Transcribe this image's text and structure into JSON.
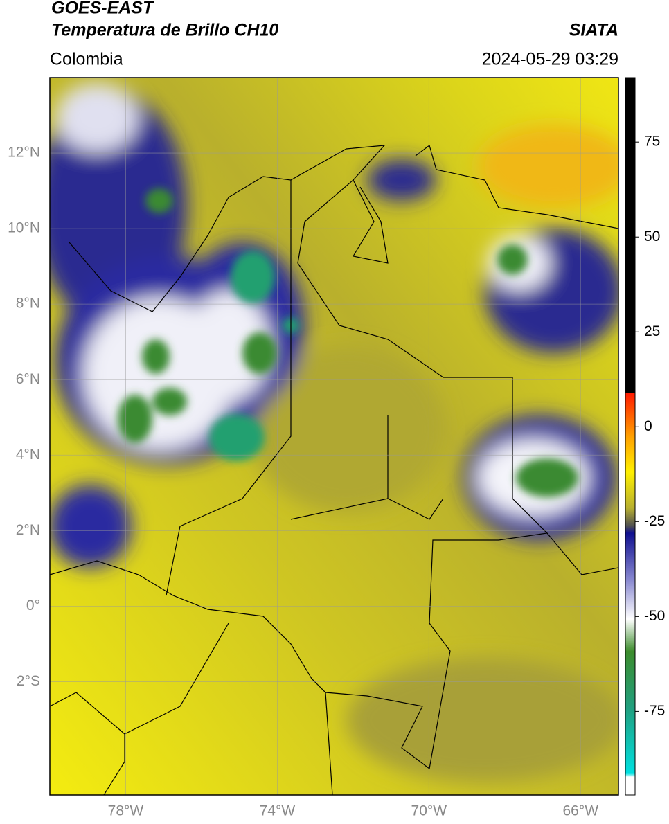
{
  "header": {
    "satellite": "GOES-EAST",
    "product": "Temperatura de Brillo CH10",
    "source": "SIATA",
    "region": "Colombia",
    "datetime": "2024-05-29 03:29"
  },
  "map": {
    "lon_range": [
      -80,
      -65
    ],
    "lat_range": [
      -5,
      14
    ],
    "lon_ticks": [
      {
        "value": -78,
        "label": "78°W"
      },
      {
        "value": -74,
        "label": "74°W"
      },
      {
        "value": -70,
        "label": "70°W"
      },
      {
        "value": -66,
        "label": "66°W"
      }
    ],
    "lat_ticks": [
      {
        "value": 12,
        "label": "12°N"
      },
      {
        "value": 10,
        "label": "10°N"
      },
      {
        "value": 8,
        "label": "8°N"
      },
      {
        "value": 6,
        "label": "6°N"
      },
      {
        "value": 4,
        "label": "4°N"
      },
      {
        "value": 2,
        "label": "2°N"
      },
      {
        "value": 0,
        "label": "0°"
      },
      {
        "value": -2,
        "label": "2°S"
      }
    ]
  },
  "colorbar": {
    "range": [
      -97,
      92
    ],
    "ticks": [
      75,
      50,
      25,
      0,
      -25,
      -50,
      -75
    ]
  }
}
